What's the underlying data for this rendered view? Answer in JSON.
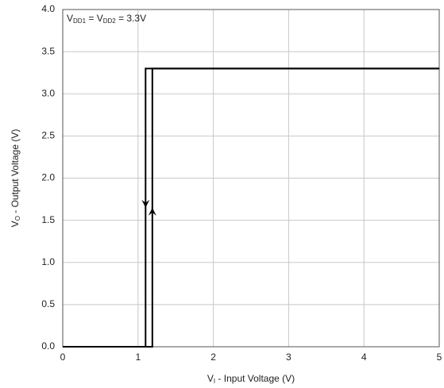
{
  "chart_data": {
    "type": "line",
    "annotation_parts": [
      "V",
      "DD1",
      " = V",
      "DD2",
      " = 3.3V"
    ],
    "x_label_parts": [
      "V",
      "I",
      " - Input Voltage (V)"
    ],
    "y_label_parts": [
      "V",
      "O",
      " - Output Voltage (V)"
    ],
    "series": [
      {
        "color": "#000000",
        "x": [
          0,
          1.19,
          1.19,
          5
        ],
        "values": [
          0,
          0,
          3.3,
          3.3
        ]
      },
      {
        "color": "#000000",
        "x": [
          5,
          1.1,
          1.1,
          0
        ],
        "values": [
          3.3,
          3.3,
          0,
          0
        ]
      }
    ],
    "xlim": [
      0,
      5
    ],
    "xticks": [
      0,
      1,
      2,
      3,
      4,
      5
    ],
    "ylim": [
      0,
      4
    ],
    "yticks": [
      {
        "value": 0,
        "label": "0.0"
      },
      0.5,
      {
        "value": 1,
        "label": "1.0"
      },
      1.5,
      {
        "value": 2,
        "label": "2.0"
      },
      2.5,
      {
        "value": 3,
        "label": "3.0"
      },
      3.5,
      {
        "value": 4,
        "label": "4.0"
      }
    ],
    "grid": true
  }
}
